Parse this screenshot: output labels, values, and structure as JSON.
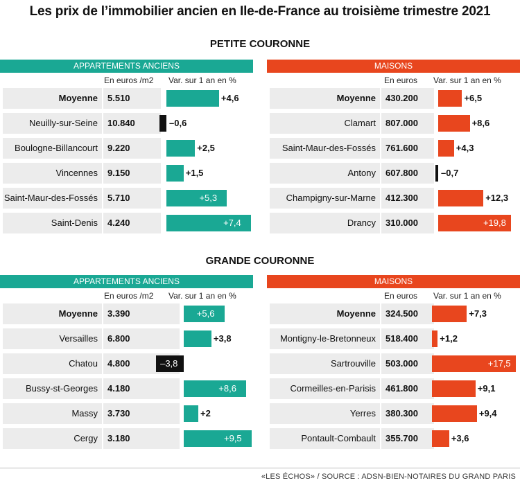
{
  "title": "Les prix de l’immobilier ancien en Ile-de-France au troisième trimestre 2021",
  "footer": "«LES ÉCHOS» / SOURCE : ADSN-BIEN-NOTAIRES DU GRAND PARIS",
  "colors": {
    "appartements": "#1aa894",
    "maisons": "#e8461e",
    "negative": "#111111",
    "row_bg": "#ececec"
  },
  "chart_data": [
    {
      "type": "bar",
      "section": "PETITE COURONNE",
      "panel": "APPARTEMENTS ANCIENS",
      "price_header": "En euros /m2",
      "var_header": "Var. sur 1 an en %",
      "categories": [
        "Moyenne",
        "Neuilly-sur-Seine",
        "Boulogne-Billancourt",
        "Vincennes",
        "Saint-Maur-des-Fossés",
        "Saint-Denis"
      ],
      "prices": [
        "5.510",
        "10.840",
        "9.220",
        "9.150",
        "5.710",
        "4.240"
      ],
      "values": [
        4.6,
        -0.6,
        2.5,
        1.5,
        5.3,
        7.4
      ],
      "labels": [
        "+4,6",
        "–0,6",
        "+2,5",
        "+1,5",
        "+5,3",
        "+7,4"
      ]
    },
    {
      "type": "bar",
      "section": "PETITE COURONNE",
      "panel": "MAISONS",
      "price_header": "En euros",
      "var_header": "Var. sur 1 an en %",
      "categories": [
        "Moyenne",
        "Clamart",
        "Saint-Maur-des-Fossés",
        "Antony",
        "Champigny-sur-Marne",
        "Drancy"
      ],
      "prices": [
        "430.200",
        "807.000",
        "761.600",
        "607.800",
        "412.300",
        "310.000"
      ],
      "values": [
        6.5,
        8.6,
        4.3,
        -0.7,
        12.3,
        19.8
      ],
      "labels": [
        "+6,5",
        "+8,6",
        "+4,3",
        "–0,7",
        "+12,3",
        "+19,8"
      ]
    },
    {
      "type": "bar",
      "section": "GRANDE COURONNE",
      "panel": "APPARTEMENTS ANCIENS",
      "price_header": "En euros /m2",
      "var_header": "Var. sur 1 an en %",
      "categories": [
        "Moyenne",
        "Versailles",
        "Chatou",
        "Bussy-st-Georges",
        "Massy",
        "Cergy"
      ],
      "prices": [
        "3.390",
        "6.800",
        "4.800",
        "4.180",
        "3.730",
        "3.180"
      ],
      "values": [
        5.6,
        3.8,
        -3.8,
        8.6,
        2,
        9.5
      ],
      "labels": [
        "+5,6",
        "+3,8",
        "–3,8",
        "+8,6",
        "+2",
        "+9,5"
      ]
    },
    {
      "type": "bar",
      "section": "GRANDE COURONNE",
      "panel": "MAISONS",
      "price_header": "En euros",
      "var_header": "Var. sur 1 an en %",
      "categories": [
        "Moyenne",
        "Montigny-le-Bretonneux",
        "Sartrouville",
        "Cormeilles-en-Parisis",
        "Yerres",
        "Pontault-Combault"
      ],
      "prices": [
        "324.500",
        "518.400",
        "503.000",
        "461.800",
        "380.300",
        "355.700"
      ],
      "values": [
        7.3,
        1.2,
        17.5,
        9.1,
        9.4,
        3.6
      ],
      "labels": [
        "+7,3",
        "+1,2",
        "+17,5",
        "+9,1",
        "+9,4",
        "+3,6"
      ]
    }
  ],
  "sections": [
    "PETITE COURONNE",
    "GRANDE COURONNE"
  ]
}
